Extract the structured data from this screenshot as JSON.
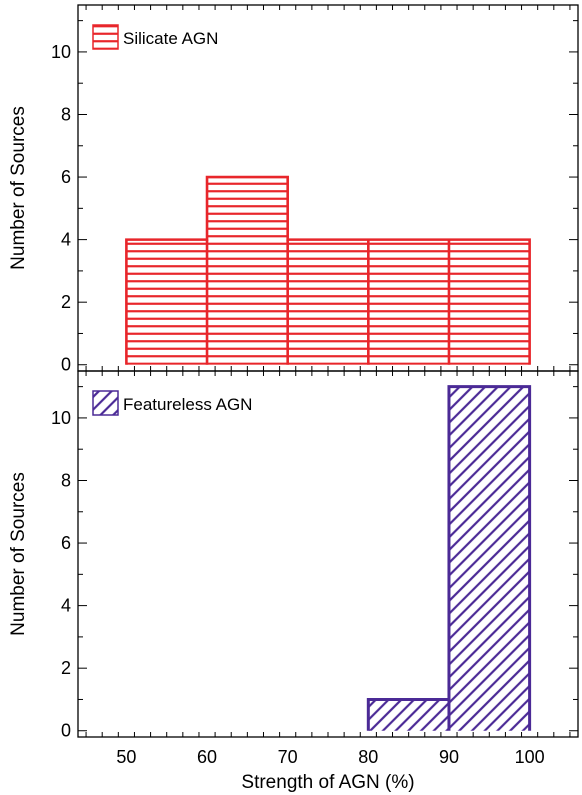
{
  "chart_data": [
    {
      "type": "bar",
      "legend": "Silicate AGN",
      "legend_position": "top-left",
      "ylabel": "Number of Sources",
      "xlabel": "",
      "xlim": [
        44,
        106
      ],
      "ylim": [
        -0.2,
        11.5
      ],
      "yticks": [
        "0",
        "2",
        "4",
        "6",
        "8",
        "10"
      ],
      "color": "#e8262b",
      "hatch": "horizontal",
      "bins": [
        {
          "x0": 50,
          "x1": 60,
          "value": 4
        },
        {
          "x0": 60,
          "x1": 70,
          "value": 6
        },
        {
          "x0": 70,
          "x1": 80,
          "value": 4
        },
        {
          "x0": 80,
          "x1": 90,
          "value": 4
        },
        {
          "x0": 90,
          "x1": 100,
          "value": 4
        }
      ]
    },
    {
      "type": "bar",
      "legend": "Featureless AGN",
      "legend_position": "top-left",
      "ylabel": "Number of Sources",
      "xlabel": "Strength of AGN (%)",
      "xlim": [
        44,
        106
      ],
      "ylim": [
        -0.2,
        11.5
      ],
      "yticks": [
        "0",
        "2",
        "4",
        "6",
        "8",
        "10"
      ],
      "xticks": [
        "50",
        "60",
        "70",
        "80",
        "90",
        "100"
      ],
      "color": "#4b2a96",
      "hatch": "diagonal",
      "bins": [
        {
          "x0": 80,
          "x1": 90,
          "value": 1
        },
        {
          "x0": 90,
          "x1": 100,
          "value": 11
        }
      ]
    }
  ]
}
